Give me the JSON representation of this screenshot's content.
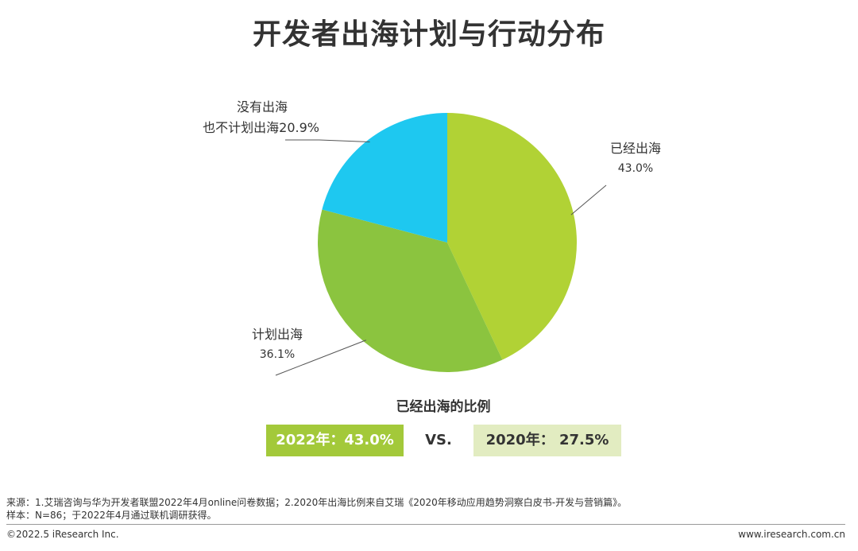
{
  "title": "开发者出海计划与行动分布",
  "chart_data": {
    "type": "pie",
    "slices": [
      {
        "label_lines": [
          "已经出海"
        ],
        "value": 43.0,
        "value_label": "43.0%",
        "color": "#b1d235"
      },
      {
        "label_lines": [
          "计划出海"
        ],
        "value": 36.1,
        "value_label": "36.1%",
        "color": "#8bc43f"
      },
      {
        "label_lines": [
          "没有出海",
          "也不计划出海"
        ],
        "value": 20.9,
        "value_label": "20.9%",
        "color": "#1ec8f0"
      }
    ]
  },
  "comparison": {
    "title": "已经出海的比例",
    "left": {
      "text": "2022年：43.0%",
      "color": "#a3c93a"
    },
    "vs": "VS.",
    "right": {
      "text": "2020年： 27.5%",
      "color": "#e2ecc1"
    }
  },
  "notes": {
    "source": "来源：1.艾瑞咨询与华为开发者联盟2022年4月online问卷数据；2.2020年出海比例来自艾瑞《2020年移动应用趋势洞察白皮书-开发与营销篇》。",
    "sample": "样本：N=86；于2022年4月通过联机调研获得。"
  },
  "footer": {
    "copyright": "©2022.5 iResearch Inc.",
    "website": "www.iresearch.com.cn"
  }
}
